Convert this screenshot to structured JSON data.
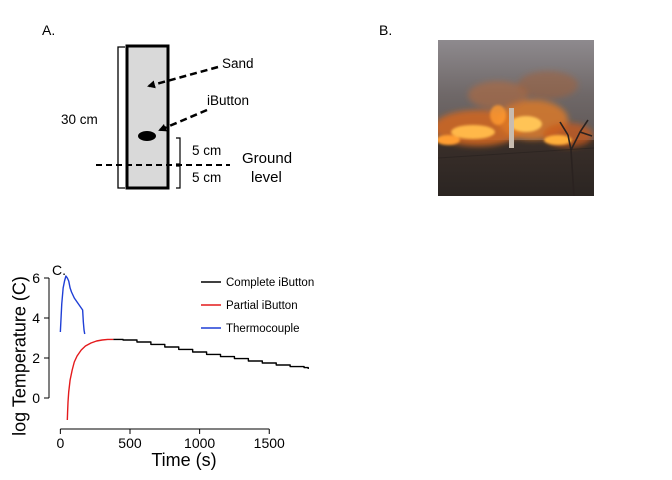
{
  "panels": {
    "a": {
      "label": "A.",
      "height_label": "30 cm",
      "sand_label": "Sand",
      "ibutton_label": "iButton",
      "depth_above_label": "5 cm",
      "depth_below_label": "5 cm",
      "ground_label_line1": "Ground",
      "ground_label_line2": "level"
    },
    "b": {
      "label": "B."
    },
    "c": {
      "label": "C."
    }
  },
  "colors": {
    "complete": "#000000",
    "partial": "#e41a1c",
    "thermocouple": "#1f3fd6",
    "sand_fill": "#d9d9d9"
  },
  "chart_data": {
    "type": "line",
    "title": "",
    "xlabel": "Time (s)",
    "ylabel": "log Temperature (C)",
    "xlim": [
      -60,
      1850
    ],
    "ylim": [
      -1.4,
      6.6
    ],
    "xticks": [
      0,
      500,
      1000,
      1500
    ],
    "yticks": [
      0,
      2,
      4,
      6
    ],
    "legend_position": "top-right",
    "series": [
      {
        "name": "Complete iButton",
        "color": "#000000",
        "step": true,
        "x": [
          380,
          450,
          550,
          650,
          750,
          850,
          950,
          1050,
          1150,
          1250,
          1350,
          1450,
          1550,
          1650,
          1750,
          1780
        ],
        "y": [
          2.93,
          2.9,
          2.8,
          2.68,
          2.55,
          2.43,
          2.3,
          2.18,
          2.07,
          1.97,
          1.85,
          1.75,
          1.65,
          1.57,
          1.52,
          1.45
        ]
      },
      {
        "name": "Partial iButton",
        "color": "#e41a1c",
        "step": false,
        "x": [
          50,
          52,
          55,
          60,
          70,
          85,
          100,
          120,
          150,
          180,
          220,
          260,
          300,
          340,
          380
        ],
        "y": [
          -1.1,
          -0.7,
          -0.2,
          0.3,
          0.9,
          1.4,
          1.8,
          2.1,
          2.4,
          2.6,
          2.75,
          2.85,
          2.9,
          2.93,
          2.93
        ]
      },
      {
        "name": "Thermocouple",
        "color": "#1f3fd6",
        "step": false,
        "x": [
          0,
          10,
          20,
          30,
          40,
          50,
          60,
          70,
          80,
          100,
          120,
          140,
          160,
          165,
          170,
          175
        ],
        "y": [
          3.3,
          4.7,
          5.5,
          5.85,
          6.1,
          6.0,
          5.85,
          5.5,
          5.3,
          5.0,
          4.8,
          4.6,
          4.4,
          3.8,
          3.4,
          3.2
        ]
      }
    ]
  }
}
